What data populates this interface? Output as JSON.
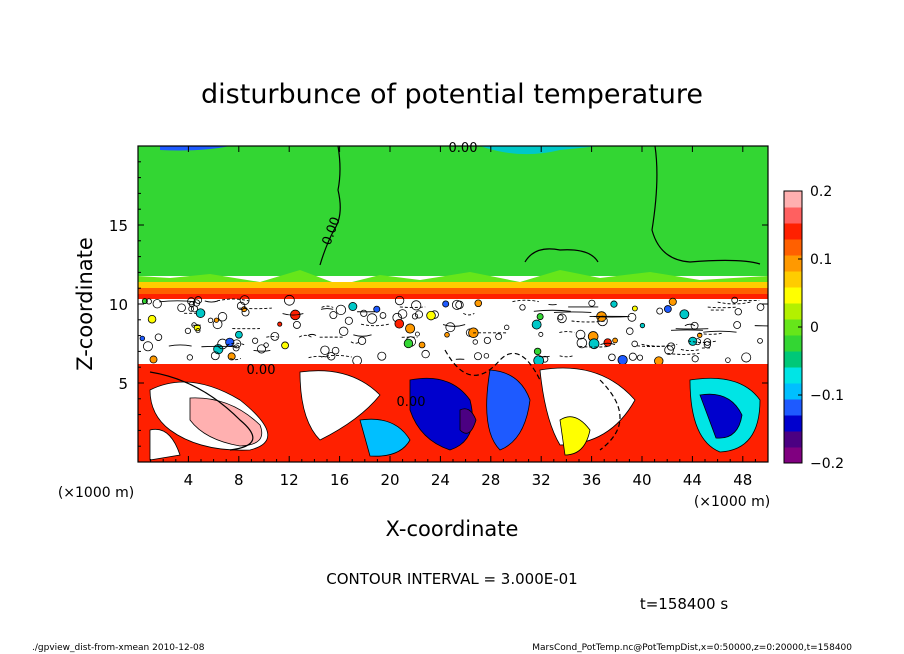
{
  "chart_data": {
    "type": "heatmap",
    "title": "disturbunce of potential temperature",
    "xlabel": "X-coordinate",
    "ylabel": "Z-coordinate",
    "x_unit": "(×1000 m)",
    "y_unit": "(×1000 m)",
    "xlim": [
      0,
      50
    ],
    "ylim": [
      0,
      20
    ],
    "x_ticks": [
      4,
      8,
      12,
      16,
      20,
      24,
      28,
      32,
      36,
      40,
      44,
      48
    ],
    "y_ticks": [
      5,
      10,
      15
    ],
    "colorbar": {
      "range": [
        -0.2,
        0.2
      ],
      "ticks": [
        0.2,
        0.1,
        0,
        -0.1,
        -0.2
      ],
      "tick_labels": [
        "0.2",
        "0.1",
        "0",
        "−0.1",
        "−0.2"
      ],
      "colors": [
        "#800080",
        "#4b0082",
        "#0000cd",
        "#1e5aff",
        "#00bfff",
        "#00e5e5",
        "#00c878",
        "#33d633",
        "#66e61a",
        "#b3f000",
        "#ffff00",
        "#ffcc00",
        "#ff9900",
        "#ff6000",
        "#ff2000",
        "#ff6060",
        "#ffb0b0"
      ]
    },
    "contour_labels": [
      "0.00",
      "0.00",
      "0.00",
      "0.00"
    ],
    "grid": false
  },
  "annotations": {
    "contour_interval": "CONTOUR INTERVAL = 3.000E-01",
    "time": "t=158400 s",
    "footer_left": "./gpview_dist-from-xmean  2010-12-08",
    "footer_right": "MarsCond_PotTemp.nc@PotTempDist,x=0:50000,z=0:20000,t=158400"
  }
}
